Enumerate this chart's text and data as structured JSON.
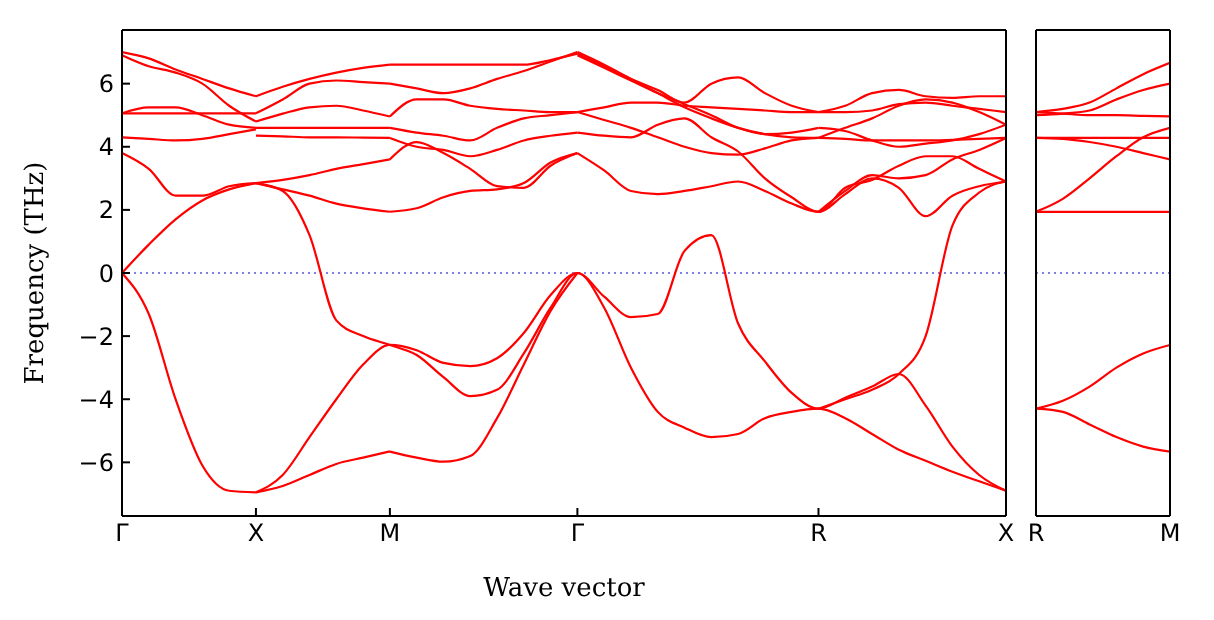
{
  "chart_data": [
    {
      "type": "line",
      "xlabel": "Wave vector",
      "ylabel": "Frequency (THz)",
      "ylim": [
        -7.7,
        7.7
      ],
      "categories": [
        "Γ",
        null,
        null,
        null,
        null,
        "X",
        null,
        null,
        null,
        null,
        "M",
        null,
        null,
        null,
        null,
        null,
        null,
        "Γ",
        null,
        null,
        null,
        null,
        null,
        null,
        null,
        null,
        "R",
        null,
        null,
        null,
        null,
        null,
        null,
        "X"
      ],
      "yticks": [
        -6,
        -4,
        -2,
        0,
        2,
        4,
        6
      ],
      "marker": "none",
      "ref_lines": [
        {
          "axis": "y",
          "value": 0,
          "color": "#5555dd",
          "line_style": "dotted"
        }
      ],
      "series": [
        {
          "color": "#ff0000",
          "values": [
            0,
            -1.3,
            -4.0,
            -6.1,
            -6.9,
            -6.95,
            null,
            null,
            null,
            null,
            null,
            null,
            null,
            null,
            null,
            null,
            null,
            null,
            null,
            null,
            null,
            null,
            null,
            null,
            null,
            null,
            null,
            null,
            null,
            null,
            null,
            null,
            null,
            null
          ]
        },
        {
          "color": "#ff0000",
          "values": [
            0,
            0.9,
            1.7,
            2.3,
            2.65,
            2.85,
            null,
            null,
            null,
            null,
            null,
            null,
            null,
            null,
            null,
            null,
            null,
            null,
            null,
            null,
            null,
            null,
            null,
            null,
            null,
            null,
            null,
            null,
            null,
            null,
            null,
            null,
            null,
            null
          ]
        },
        {
          "color": "#ff0000",
          "values": [
            3.8,
            3.3,
            2.45,
            2.45,
            2.75,
            2.85,
            null,
            null,
            null,
            null,
            null,
            null,
            null,
            null,
            null,
            null,
            null,
            null,
            null,
            null,
            null,
            null,
            null,
            null,
            null,
            null,
            null,
            null,
            null,
            null,
            null,
            null,
            null,
            null
          ]
        },
        {
          "color": "#ff0000",
          "values": [
            4.3,
            4.25,
            4.2,
            4.25,
            4.4,
            4.55,
            null,
            null,
            null,
            null,
            null,
            null,
            null,
            null,
            null,
            null,
            null,
            null,
            null,
            null,
            null,
            null,
            null,
            null,
            null,
            null,
            null,
            null,
            null,
            null,
            null,
            null,
            null,
            null
          ]
        },
        {
          "color": "#ff0000",
          "values": [
            5.06,
            5.06,
            5.06,
            5.06,
            5.06,
            5.06,
            null,
            null,
            null,
            null,
            null,
            null,
            null,
            null,
            null,
            null,
            null,
            null,
            null,
            null,
            null,
            null,
            null,
            null,
            null,
            null,
            null,
            null,
            null,
            null,
            null,
            null,
            null,
            null
          ]
        },
        {
          "color": "#ff0000",
          "values": [
            5.06,
            5.25,
            5.25,
            5.0,
            4.7,
            4.6,
            null,
            null,
            null,
            null,
            null,
            null,
            null,
            null,
            null,
            null,
            null,
            null,
            null,
            null,
            null,
            null,
            null,
            null,
            null,
            null,
            null,
            null,
            null,
            null,
            null,
            null,
            null,
            null
          ]
        },
        {
          "color": "#ff0000",
          "values": [
            7.0,
            6.8,
            6.45,
            6.15,
            5.85,
            5.6,
            null,
            null,
            null,
            null,
            null,
            null,
            null,
            null,
            null,
            null,
            null,
            null,
            null,
            null,
            null,
            null,
            null,
            null,
            null,
            null,
            null,
            null,
            null,
            null,
            null,
            null,
            null,
            null
          ]
        },
        {
          "color": "#ff0000",
          "values": [
            6.9,
            6.55,
            6.35,
            6.0,
            5.3,
            4.8,
            null,
            null,
            null,
            null,
            null,
            null,
            null,
            null,
            null,
            null,
            null,
            null,
            null,
            null,
            null,
            null,
            null,
            null,
            null,
            null,
            null,
            null,
            null,
            null,
            null,
            null,
            null,
            null
          ]
        },
        {
          "color": "#ff0000",
          "values": [
            null,
            null,
            null,
            null,
            null,
            -6.95,
            -6.4,
            -5.2,
            -4.0,
            -2.9,
            -2.28,
            -2.45,
            -2.85,
            -2.95,
            -2.7,
            -1.9,
            -0.7,
            0,
            -0.75,
            -1.4,
            -1.3,
            0.7,
            1.2,
            -1.6,
            -2.8,
            -3.8,
            -4.3,
            -3.95,
            -3.6,
            -3.2,
            -4.2,
            -5.5,
            -6.4,
            -6.9
          ]
        },
        {
          "color": "#ff0000",
          "values": [
            null,
            null,
            null,
            null,
            null,
            -6.95,
            -6.75,
            -6.4,
            -6.05,
            -5.85,
            -5.65,
            null,
            null,
            null,
            null,
            null,
            null,
            null,
            null,
            null,
            null,
            null,
            null,
            null,
            null,
            null,
            null,
            null,
            null,
            null,
            null,
            null,
            null,
            null
          ]
        },
        {
          "color": "#ff0000",
          "values": [
            null,
            null,
            null,
            null,
            null,
            2.85,
            2.6,
            1.2,
            -1.5,
            -2.0,
            -2.28,
            -2.6,
            -3.3,
            -3.9,
            -3.7,
            -2.55,
            -1.1,
            0,
            -1.1,
            -3.0,
            -4.4,
            -4.9,
            -5.2,
            -5.1,
            -4.6,
            -4.4,
            -4.3,
            -4.6,
            -5.1,
            -5.6,
            -5.95,
            -6.3,
            -6.6,
            -6.9
          ]
        },
        {
          "color": "#ff0000",
          "values": [
            null,
            null,
            null,
            null,
            null,
            2.85,
            2.65,
            2.45,
            2.2,
            2.05,
            1.94,
            null,
            null,
            null,
            null,
            null,
            null,
            null,
            null,
            null,
            null,
            null,
            null,
            null,
            null,
            null,
            null,
            null,
            null,
            null,
            null,
            null,
            null,
            null
          ]
        },
        {
          "color": "#ff0000",
          "values": [
            null,
            null,
            null,
            null,
            null,
            2.85,
            2.95,
            3.1,
            3.3,
            3.45,
            3.6,
            null,
            null,
            null,
            null,
            null,
            null,
            null,
            null,
            null,
            null,
            null,
            null,
            null,
            null,
            null,
            null,
            null,
            null,
            null,
            null,
            null,
            null,
            null
          ]
        },
        {
          "color": "#ff0000",
          "values": [
            null,
            null,
            null,
            null,
            null,
            5.6,
            5.9,
            6.15,
            6.35,
            6.5,
            6.6,
            null,
            null,
            null,
            null,
            null,
            null,
            null,
            null,
            null,
            null,
            null,
            null,
            null,
            null,
            null,
            null,
            null,
            null,
            null,
            null,
            null,
            null,
            null
          ]
        },
        {
          "color": "#ff0000",
          "values": [
            null,
            null,
            null,
            null,
            null,
            5.06,
            5.5,
            6.0,
            6.1,
            6.05,
            6.0,
            null,
            null,
            null,
            null,
            null,
            null,
            null,
            null,
            null,
            null,
            null,
            null,
            null,
            null,
            null,
            null,
            null,
            null,
            null,
            null,
            null,
            null,
            null
          ]
        },
        {
          "color": "#ff0000",
          "values": [
            null,
            null,
            null,
            null,
            null,
            4.8,
            5.05,
            5.25,
            5.3,
            5.15,
            4.96,
            null,
            null,
            null,
            null,
            null,
            null,
            null,
            null,
            null,
            null,
            null,
            null,
            null,
            null,
            null,
            null,
            null,
            null,
            null,
            null,
            null,
            null,
            null
          ]
        },
        {
          "color": "#ff0000",
          "values": [
            null,
            null,
            null,
            null,
            null,
            4.6,
            4.6,
            4.6,
            4.6,
            4.6,
            4.6,
            null,
            null,
            null,
            null,
            null,
            null,
            null,
            null,
            null,
            null,
            null,
            null,
            null,
            null,
            null,
            null,
            null,
            null,
            null,
            null,
            null,
            null,
            null
          ]
        },
        {
          "color": "#ff0000",
          "values": [
            null,
            null,
            null,
            null,
            null,
            4.35,
            4.33,
            4.3,
            4.3,
            4.29,
            4.28,
            null,
            null,
            null,
            null,
            null,
            null,
            null,
            null,
            null,
            null,
            null,
            null,
            null,
            null,
            null,
            null,
            null,
            null,
            null,
            null,
            null,
            null,
            null
          ]
        },
        {
          "color": "#ff0000",
          "values": [
            null,
            null,
            null,
            null,
            null,
            null,
            null,
            null,
            null,
            null,
            -5.66,
            -5.85,
            -5.98,
            -5.8,
            -4.6,
            -2.9,
            -1.2,
            0,
            null,
            null,
            null,
            null,
            null,
            null,
            null,
            null,
            null,
            null,
            null,
            null,
            null,
            null,
            null,
            null
          ]
        },
        {
          "color": "#ff0000",
          "values": [
            null,
            null,
            null,
            null,
            null,
            null,
            null,
            null,
            null,
            null,
            1.94,
            2.05,
            2.4,
            2.6,
            2.65,
            2.85,
            3.5,
            3.8,
            null,
            null,
            null,
            null,
            null,
            null,
            null,
            null,
            null,
            null,
            null,
            null,
            null,
            null,
            null,
            null
          ]
        },
        {
          "color": "#ff0000",
          "values": [
            null,
            null,
            null,
            null,
            null,
            null,
            null,
            null,
            null,
            null,
            3.6,
            4.15,
            3.8,
            3.3,
            2.75,
            2.7,
            3.4,
            3.8,
            null,
            null,
            null,
            null,
            null,
            null,
            null,
            null,
            null,
            null,
            null,
            null,
            null,
            null,
            null,
            null
          ]
        },
        {
          "color": "#ff0000",
          "values": [
            null,
            null,
            null,
            null,
            null,
            null,
            null,
            null,
            null,
            null,
            4.28,
            4.0,
            3.9,
            3.7,
            3.9,
            4.2,
            4.35,
            4.45,
            null,
            null,
            null,
            null,
            null,
            null,
            null,
            null,
            null,
            null,
            null,
            null,
            null,
            null,
            null,
            null
          ]
        },
        {
          "color": "#ff0000",
          "values": [
            null,
            null,
            null,
            null,
            null,
            null,
            null,
            null,
            null,
            null,
            4.6,
            4.45,
            4.35,
            4.2,
            4.6,
            4.9,
            5.0,
            5.1,
            null,
            null,
            null,
            null,
            null,
            null,
            null,
            null,
            null,
            null,
            null,
            null,
            null,
            null,
            null,
            null
          ]
        },
        {
          "color": "#ff0000",
          "values": [
            null,
            null,
            null,
            null,
            null,
            null,
            null,
            null,
            null,
            null,
            4.96,
            5.5,
            5.5,
            5.3,
            5.2,
            5.15,
            5.1,
            5.1,
            null,
            null,
            null,
            null,
            null,
            null,
            null,
            null,
            null,
            null,
            null,
            null,
            null,
            null,
            null,
            null
          ]
        },
        {
          "color": "#ff0000",
          "values": [
            null,
            null,
            null,
            null,
            null,
            null,
            null,
            null,
            null,
            null,
            6.0,
            5.85,
            5.7,
            5.85,
            6.15,
            6.4,
            6.7,
            7.0,
            null,
            null,
            null,
            null,
            null,
            null,
            null,
            null,
            null,
            null,
            null,
            null,
            null,
            null,
            null,
            null
          ]
        },
        {
          "color": "#ff0000",
          "values": [
            null,
            null,
            null,
            null,
            null,
            null,
            null,
            null,
            null,
            null,
            6.6,
            6.6,
            6.6,
            6.6,
            6.6,
            6.6,
            6.75,
            6.95,
            null,
            null,
            null,
            null,
            null,
            null,
            null,
            null,
            null,
            null,
            null,
            null,
            null,
            null,
            null,
            null
          ]
        },
        {
          "color": "#ff0000",
          "values": [
            null,
            null,
            null,
            null,
            null,
            null,
            null,
            null,
            null,
            null,
            null,
            null,
            null,
            null,
            null,
            null,
            null,
            3.8,
            3.25,
            2.6,
            2.5,
            2.6,
            2.75,
            2.9,
            2.6,
            2.2,
            1.94,
            2.5,
            3.0,
            2.7,
            1.8,
            2.45,
            2.75,
            2.9
          ]
        },
        {
          "color": "#ff0000",
          "values": [
            null,
            null,
            null,
            null,
            null,
            null,
            null,
            null,
            null,
            null,
            null,
            null,
            null,
            null,
            null,
            null,
            null,
            4.45,
            4.35,
            4.3,
            4.7,
            4.9,
            4.3,
            3.85,
            3.0,
            2.4,
            1.94,
            2.7,
            2.95,
            3.4,
            3.7,
            3.7,
            3.3,
            2.9
          ]
        },
        {
          "color": "#ff0000",
          "values": [
            null,
            null,
            null,
            null,
            null,
            null,
            null,
            null,
            null,
            null,
            null,
            null,
            null,
            null,
            null,
            null,
            null,
            5.1,
            4.85,
            4.6,
            4.3,
            4.0,
            3.8,
            3.75,
            3.95,
            4.2,
            4.28,
            null,
            null,
            null,
            null,
            null,
            null,
            null
          ]
        },
        {
          "color": "#ff0000",
          "values": [
            null,
            null,
            null,
            null,
            null,
            null,
            null,
            null,
            null,
            null,
            null,
            null,
            null,
            null,
            null,
            null,
            null,
            5.1,
            5.25,
            5.4,
            5.4,
            5.3,
            5.25,
            5.2,
            5.15,
            5.1,
            5.1,
            null,
            null,
            null,
            null,
            null,
            null,
            null
          ]
        },
        {
          "color": "#ff0000",
          "values": [
            null,
            null,
            null,
            null,
            null,
            null,
            null,
            null,
            null,
            null,
            null,
            null,
            null,
            null,
            null,
            null,
            null,
            6.95,
            6.55,
            6.15,
            5.8,
            5.4,
            6.0,
            6.2,
            5.7,
            5.3,
            5.1,
            null,
            null,
            null,
            null,
            null,
            null,
            null
          ]
        },
        {
          "color": "#ff0000",
          "values": [
            null,
            null,
            null,
            null,
            null,
            null,
            null,
            null,
            null,
            null,
            null,
            null,
            null,
            null,
            null,
            null,
            null,
            7.0,
            6.6,
            6.15,
            5.7,
            5.25,
            4.9,
            4.6,
            4.4,
            4.3,
            4.28,
            null,
            null,
            null,
            null,
            null,
            null,
            null
          ]
        },
        {
          "color": "#ff0000",
          "values": [
            null,
            null,
            null,
            null,
            null,
            null,
            null,
            null,
            null,
            null,
            null,
            null,
            null,
            null,
            null,
            null,
            null,
            6.9,
            6.5,
            6.1,
            5.7,
            5.35,
            5.0,
            4.6,
            4.4,
            4.45,
            4.6,
            null,
            null,
            null,
            null,
            null,
            null,
            null
          ]
        },
        {
          "color": "#ff0000",
          "values": [
            null,
            null,
            null,
            null,
            null,
            null,
            null,
            null,
            null,
            null,
            null,
            null,
            null,
            null,
            null,
            null,
            null,
            null,
            null,
            null,
            null,
            null,
            null,
            null,
            null,
            null,
            -4.3,
            -4.0,
            -3.7,
            -3.2,
            -2.0,
            1.5,
            2.55,
            2.9
          ]
        },
        {
          "color": "#ff0000",
          "values": [
            null,
            null,
            null,
            null,
            null,
            null,
            null,
            null,
            null,
            null,
            null,
            null,
            null,
            null,
            null,
            null,
            null,
            null,
            null,
            null,
            null,
            null,
            null,
            null,
            null,
            null,
            1.94,
            2.6,
            3.1,
            3.0,
            3.1,
            3.6,
            3.9,
            4.28
          ]
        },
        {
          "color": "#ff0000",
          "values": [
            null,
            null,
            null,
            null,
            null,
            null,
            null,
            null,
            null,
            null,
            null,
            null,
            null,
            null,
            null,
            null,
            null,
            null,
            null,
            null,
            null,
            null,
            null,
            null,
            null,
            null,
            4.28,
            4.25,
            4.2,
            4.2,
            4.2,
            4.22,
            4.25,
            4.28
          ]
        },
        {
          "color": "#ff0000",
          "values": [
            null,
            null,
            null,
            null,
            null,
            null,
            null,
            null,
            null,
            null,
            null,
            null,
            null,
            null,
            null,
            null,
            null,
            null,
            null,
            null,
            null,
            null,
            null,
            null,
            null,
            null,
            4.6,
            4.5,
            4.2,
            4.0,
            4.1,
            4.2,
            4.4,
            4.7
          ]
        },
        {
          "color": "#ff0000",
          "values": [
            null,
            null,
            null,
            null,
            null,
            null,
            null,
            null,
            null,
            null,
            null,
            null,
            null,
            null,
            null,
            null,
            null,
            null,
            null,
            null,
            null,
            null,
            null,
            null,
            null,
            null,
            5.1,
            5.3,
            5.7,
            5.8,
            5.6,
            5.55,
            5.6,
            5.6
          ]
        },
        {
          "color": "#ff0000",
          "values": [
            null,
            null,
            null,
            null,
            null,
            null,
            null,
            null,
            null,
            null,
            null,
            null,
            null,
            null,
            null,
            null,
            null,
            null,
            null,
            null,
            null,
            null,
            null,
            null,
            null,
            null,
            5.1,
            5.1,
            5.15,
            5.35,
            5.4,
            5.3,
            5.2,
            5.1
          ]
        },
        {
          "color": "#ff0000",
          "values": [
            null,
            null,
            null,
            null,
            null,
            null,
            null,
            null,
            null,
            null,
            null,
            null,
            null,
            null,
            null,
            null,
            null,
            null,
            null,
            null,
            null,
            null,
            null,
            null,
            null,
            null,
            4.28,
            4.6,
            4.9,
            5.3,
            5.5,
            5.4,
            5.1,
            4.7
          ]
        }
      ]
    },
    {
      "type": "line",
      "ylim": [
        -7.7,
        7.7
      ],
      "categories": [
        "R",
        null,
        null,
        null,
        null,
        "M"
      ],
      "yticks": [
        -6,
        -4,
        -2,
        0,
        2,
        4,
        6
      ],
      "tick_labels": "x",
      "marker": "none",
      "ref_lines": [
        {
          "axis": "y",
          "value": 0,
          "color": "#5555dd",
          "line_style": "dotted"
        }
      ],
      "series": [
        {
          "color": "#ff0000",
          "values": [
            5.1,
            5.2,
            5.4,
            5.85,
            6.3,
            6.66
          ]
        },
        {
          "color": "#ff0000",
          "values": [
            5.0,
            5.05,
            5.15,
            5.5,
            5.8,
            6.0
          ]
        },
        {
          "color": "#ff0000",
          "values": [
            5.1,
            5.05,
            5.0,
            5.0,
            4.98,
            4.96
          ]
        },
        {
          "color": "#ff0000",
          "values": [
            1.94,
            2.35,
            3.0,
            3.7,
            4.3,
            4.6
          ]
        },
        {
          "color": "#ff0000",
          "values": [
            4.28,
            4.28,
            4.28,
            4.28,
            4.28,
            4.28
          ]
        },
        {
          "color": "#ff0000",
          "values": [
            4.28,
            4.25,
            4.15,
            4.0,
            3.8,
            3.6
          ]
        },
        {
          "color": "#ff0000",
          "values": [
            1.94,
            1.94,
            1.94,
            1.94,
            1.94,
            1.94
          ]
        },
        {
          "color": "#ff0000",
          "values": [
            -4.3,
            -4.05,
            -3.6,
            -3.0,
            -2.55,
            -2.28
          ]
        },
        {
          "color": "#ff0000",
          "values": [
            -4.3,
            -4.4,
            -4.8,
            -5.2,
            -5.5,
            -5.66
          ]
        }
      ]
    }
  ]
}
